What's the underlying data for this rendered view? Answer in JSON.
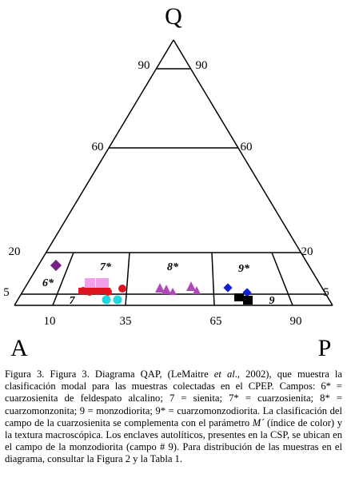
{
  "diagram": {
    "vertices": {
      "top": "Q",
      "left": "A",
      "right": "P"
    },
    "left_ticks": [
      "90",
      "60",
      "20",
      "5"
    ],
    "right_ticks": [
      "90",
      "60",
      "20",
      "5"
    ],
    "bottom_ticks": [
      "10",
      "35",
      "65",
      "90"
    ],
    "fields": [
      "6*",
      "7*",
      "8*",
      "9*",
      "7",
      "9"
    ]
  },
  "caption": {
    "parts": [
      "Figura 3. Figura 3. Diagrama QAP, (LeMaitre ",
      "et al",
      "., 2002), que muestra la clasificación modal para las muestras colectadas en el CPEP. Campos: 6* = cuarzosienita de feldespato alcalino; 7 = sienita; 7* = cuarzosienita; 8* = cuarzomonzonita; 9 = monzodiorita; 9* = cuarzomonzodiorita. La clasificación del campo de la cuarzosienita se complementa con el parámetro ",
      "M´",
      " (índice de color) y la textura macroscópica. Los enclaves autolíticos, presentes en la CSP, se ubican en el campo de la monzodiorita (campo # 9). Para distribución de las muestras en el diagrama, consultar la Figura 2 y la Tabla 1."
    ]
  }
}
